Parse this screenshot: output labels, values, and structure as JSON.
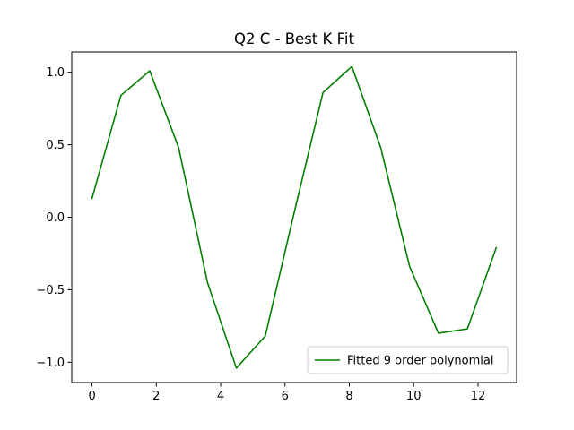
{
  "chart_data": {
    "type": "line",
    "title": "Q2 C - Best K Fit",
    "xlabel": "",
    "ylabel": "",
    "xlim": [
      -0.63,
      13.2
    ],
    "ylim": [
      -1.14,
      1.14
    ],
    "x_ticks": [
      0,
      2,
      4,
      6,
      8,
      10,
      12
    ],
    "x_tick_labels": [
      "0",
      "2",
      "4",
      "6",
      "8",
      "10",
      "12"
    ],
    "y_ticks": [
      -1.0,
      -0.5,
      0.0,
      0.5,
      1.0
    ],
    "y_tick_labels": [
      "−1.0",
      "−0.5",
      "0.0",
      "0.5",
      "1.0"
    ],
    "grid": false,
    "legend_position": "lower-right",
    "series": [
      {
        "name": "Fitted 9 order polynomial",
        "color": "#008000",
        "x": [
          0,
          0.898,
          1.795,
          2.693,
          3.59,
          4.488,
          5.386,
          6.283,
          7.181,
          8.078,
          8.976,
          9.874,
          10.771,
          11.669,
          12.566
        ],
        "y": [
          0.13,
          0.84,
          1.01,
          0.48,
          -0.45,
          -1.04,
          -0.82,
          0.03,
          0.86,
          1.04,
          0.48,
          -0.34,
          -0.8,
          -0.77,
          -0.21
        ]
      }
    ]
  }
}
